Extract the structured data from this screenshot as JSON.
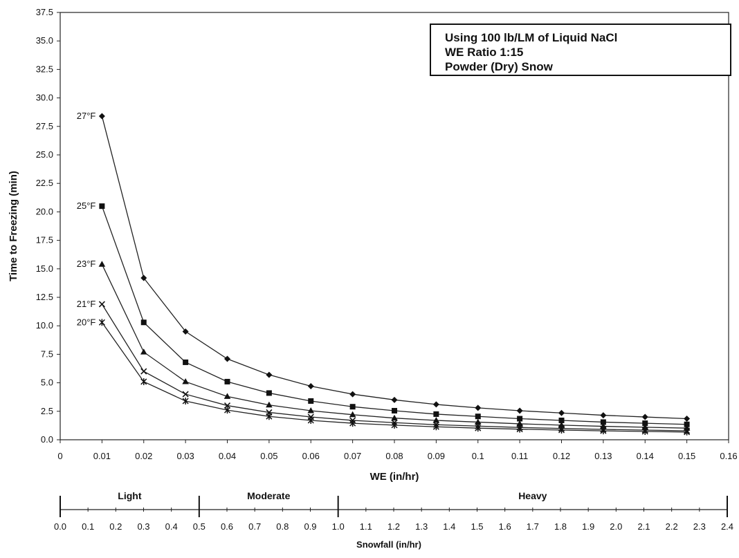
{
  "chart_data": {
    "type": "line",
    "xlabel": "WE (in/hr)",
    "ylabel": "Time to Freezing (min)",
    "xlim": [
      0,
      0.16
    ],
    "ylim": [
      0,
      37.5
    ],
    "x_ticks": [
      "0",
      "0.01",
      "0.02",
      "0.03",
      "0.04",
      "0.05",
      "0.06",
      "0.07",
      "0.08",
      "0.09",
      "0.1",
      "0.11",
      "0.12",
      "0.13",
      "0.14",
      "0.15",
      "0.16"
    ],
    "y_ticks": [
      "0.0",
      "2.5",
      "5.0",
      "7.5",
      "10.0",
      "12.5",
      "15.0",
      "17.5",
      "20.0",
      "22.5",
      "25.0",
      "27.5",
      "30.0",
      "32.5",
      "35.0",
      "37.5"
    ],
    "annotation_lines": [
      "Using 100 lb/LM of Liquid NaCl",
      "WE Ratio 1:15",
      "Powder (Dry) Snow"
    ],
    "x": [
      0.01,
      0.02,
      0.03,
      0.04,
      0.05,
      0.06,
      0.07,
      0.08,
      0.09,
      0.1,
      0.11,
      0.12,
      0.13,
      0.14,
      0.15
    ],
    "series": [
      {
        "name": "27°F",
        "marker": "diamond",
        "values": [
          28.4,
          14.2,
          9.5,
          7.1,
          5.7,
          4.7,
          4.0,
          3.5,
          3.1,
          2.8,
          2.55,
          2.35,
          2.15,
          2.0,
          1.85
        ]
      },
      {
        "name": "25°F",
        "marker": "square",
        "values": [
          20.5,
          10.3,
          6.8,
          5.1,
          4.1,
          3.4,
          2.9,
          2.55,
          2.25,
          2.05,
          1.85,
          1.7,
          1.55,
          1.45,
          1.35
        ]
      },
      {
        "name": "23°F",
        "marker": "triangle",
        "values": [
          15.4,
          7.7,
          5.1,
          3.8,
          3.05,
          2.55,
          2.2,
          1.9,
          1.7,
          1.55,
          1.4,
          1.28,
          1.18,
          1.1,
          1.02
        ]
      },
      {
        "name": "21°F",
        "marker": "x",
        "values": [
          11.9,
          6.0,
          4.0,
          3.0,
          2.4,
          2.0,
          1.7,
          1.5,
          1.32,
          1.2,
          1.08,
          0.99,
          0.91,
          0.85,
          0.79
        ]
      },
      {
        "name": "20°F",
        "marker": "star",
        "values": [
          10.3,
          5.1,
          3.4,
          2.6,
          2.05,
          1.7,
          1.45,
          1.28,
          1.14,
          1.02,
          0.93,
          0.85,
          0.78,
          0.73,
          0.68
        ]
      }
    ],
    "secondary_axis": {
      "label": "Snowfall (in/hr)",
      "range": [
        0,
        2.4
      ],
      "ticks": [
        "0.0",
        "0.1",
        "0.2",
        "0.3",
        "0.4",
        "0.5",
        "0.6",
        "0.7",
        "0.8",
        "0.9",
        "1.0",
        "1.1",
        "1.2",
        "1.3",
        "1.4",
        "1.5",
        "1.6",
        "1.7",
        "1.8",
        "1.9",
        "2.0",
        "2.1",
        "2.2",
        "2.3",
        "2.4"
      ],
      "bands": [
        {
          "label": "Light",
          "from": 0,
          "to": 0.5
        },
        {
          "label": "Moderate",
          "from": 0.5,
          "to": 1.0
        },
        {
          "label": "Heavy",
          "from": 1.0,
          "to": 2.4
        }
      ]
    },
    "grid": false,
    "legend": "none"
  }
}
